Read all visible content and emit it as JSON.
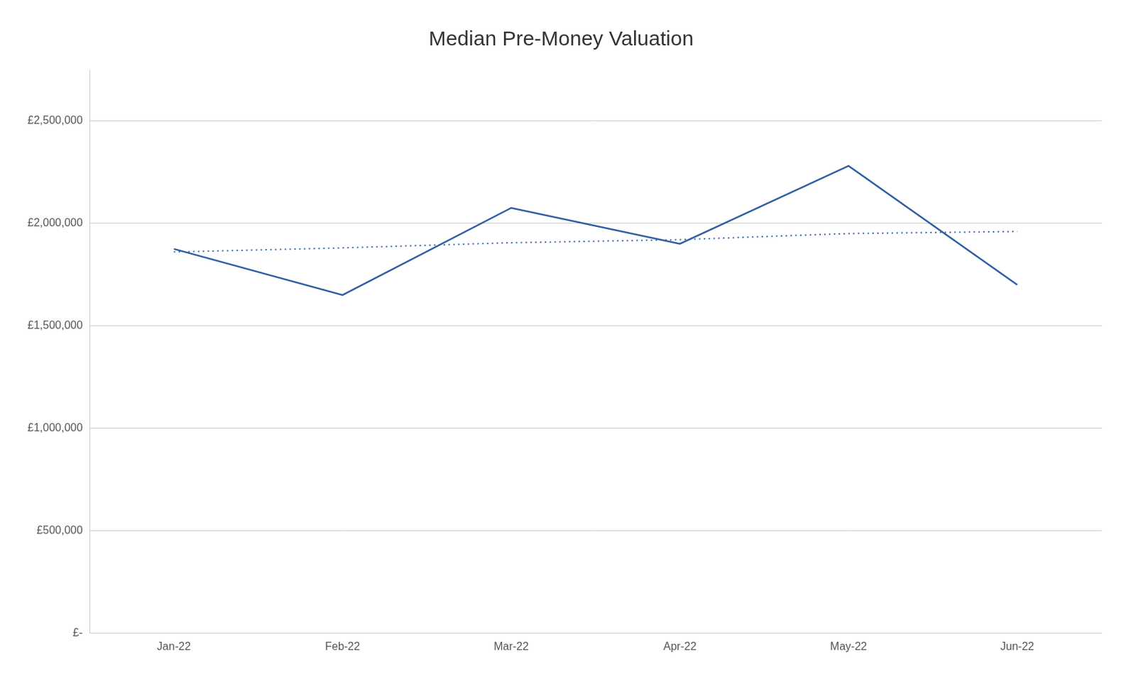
{
  "chart_data": {
    "type": "line",
    "title": "Median Pre-Money Valuation",
    "categories": [
      "Jan-22",
      "Feb-22",
      "Mar-22",
      "Apr-22",
      "May-22",
      "Jun-22"
    ],
    "series": [
      {
        "color": "#2E5FA3",
        "line_style": "solid",
        "values": [
          1875000,
          1650000,
          2075000,
          1900000,
          2280000,
          1700000
        ]
      },
      {
        "color": "#2E5FA3",
        "line_style": "dotted",
        "values": [
          1860000,
          1880000,
          1905000,
          1920000,
          1950000,
          1960000
        ]
      }
    ],
    "ylim": [
      0,
      2750000
    ],
    "yticks": [
      {
        "value": 0,
        "label": "£-"
      },
      {
        "value": 500000,
        "label": "£500,000"
      },
      {
        "value": 1000000,
        "label": "£1,000,000"
      },
      {
        "value": 1500000,
        "label": "£1,500,000"
      },
      {
        "value": 2000000,
        "label": "£2,000,000"
      },
      {
        "value": 2500000,
        "label": "£2,500,000"
      }
    ],
    "grid": true
  }
}
